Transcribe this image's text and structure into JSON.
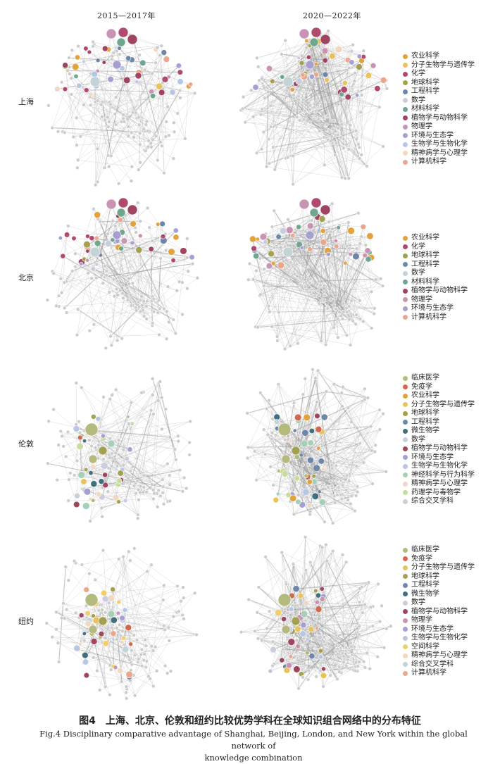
{
  "columns": [
    "2015—2017年",
    "2020—2022年"
  ],
  "rows": [
    "上海",
    "北京",
    "伦敦",
    "纽约"
  ],
  "colors": {
    "农业科学": "#e3a33c",
    "分子生物学与遗传学": "#e8c25a",
    "化学": "#b04a6e",
    "地球科学": "#a3a050",
    "工程科学": "#6d87aa",
    "数学": "#c9cde0",
    "材料科学": "#6fa68e",
    "植物学与动物科学": "#a04560",
    "物理学": "#c994b4",
    "环境与生态学": "#a69fd1",
    "生物学与生物化学": "#b7c6e3",
    "精神病学与心理学": "#f1d8c2",
    "计算机科学": "#e9a88c",
    "临床医学": "#b4b97d",
    "免疫学": "#d1694f",
    "微生物学": "#3f6f80",
    "神经科学与行为科学": "#a7cfb8",
    "药理学与毒物学": "#c8dca0",
    "综合交叉学科": "#c3d3d6",
    "空间科学": "#f0cf6a",
    "other": "#cccccc"
  },
  "legends": [
    [
      "农业科学",
      "分子生物学与遗传学",
      "化学",
      "地球科学",
      "工程科学",
      "数学",
      "材料科学",
      "植物学与动物科学",
      "物理学",
      "环境与生态学",
      "生物学与生物化学",
      "精神病学与心理学",
      "计算机科学"
    ],
    [
      "农业科学",
      "化学",
      "地球科学",
      "工程科学",
      "数学",
      "材料科学",
      "植物学与动物科学",
      "物理学",
      "环境与生态学",
      "计算机科学"
    ],
    [
      "临床医学",
      "免疫学",
      "农业科学",
      "分子生物学与遗传学",
      "地球科学",
      "工程科学",
      "微生物学",
      "数学",
      "植物学与动物科学",
      "环境与生态学",
      "生物学与生物化学",
      "神经科学与行为科学",
      "精神病学与心理学",
      "药理学与毒物学",
      "综合交叉学科"
    ],
    [
      "临床医学",
      "免疫学",
      "分子生物学与遗传学",
      "地球科学",
      "工程科学",
      "微生物学",
      "数学",
      "植物学与动物科学",
      "物理学",
      "环境与生态学",
      "生物学与生物化学",
      "空间科学",
      "精神病学与心理学",
      "综合交叉学科",
      "计算机科学"
    ]
  ],
  "caption": {
    "cn": "图4　上海、北京、伦敦和纽约比较优势学科在全球知识组合网络中的分布特征",
    "en_line1": "Fig.4   Disciplinary comparative advantage of Shanghai, Beijing, London, and New York within the global network of",
    "en_line2": "knowledge combination"
  }
}
